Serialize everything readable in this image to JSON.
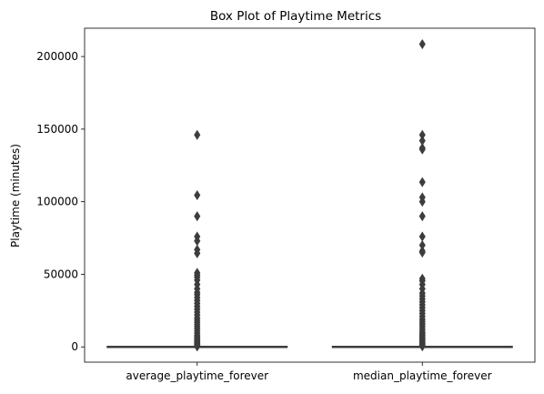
{
  "chart_data": {
    "type": "box",
    "title": "Box Plot of Playtime Metrics",
    "xlabel": "",
    "ylabel": "Playtime (minutes)",
    "ylim": [
      -10500,
      219500
    ],
    "yticks": [
      0,
      50000,
      100000,
      150000,
      200000
    ],
    "yticklabels": [
      "0",
      "50000",
      "100000",
      "150000",
      "200000"
    ],
    "grid": false,
    "legend": "none",
    "box_color": "#3d3d3d",
    "categories": [
      "average_playtime_forever",
      "median_playtime_forever"
    ],
    "boxes": [
      {
        "name": "average_playtime_forever",
        "q1": 0,
        "median": 0,
        "q3": 0,
        "whisker_low": 0,
        "whisker_high": 0,
        "outliers": [
          146000,
          104500,
          90000,
          76000,
          73000,
          67000,
          64500,
          51000,
          49500,
          48000,
          46000,
          43000,
          40000,
          37500,
          36000,
          34000,
          32000,
          30000,
          28000,
          26000,
          24000,
          22000,
          20000,
          18500,
          17000,
          15500,
          14000,
          12500,
          11000,
          9500,
          8000,
          7000,
          6000,
          5000,
          4000,
          3200,
          2500,
          1800,
          1200,
          700,
          300
        ]
      },
      {
        "name": "median_playtime_forever",
        "q1": 0,
        "median": 0,
        "q3": 0,
        "whisker_low": 0,
        "whisker_high": 0,
        "outliers": [
          208500,
          146000,
          142000,
          137000,
          136000,
          113500,
          103000,
          100000,
          90000,
          76000,
          70000,
          66000,
          65000,
          47000,
          45500,
          43000,
          40000,
          37000,
          35000,
          33000,
          31000,
          29000,
          27000,
          25000,
          23000,
          21000,
          19000,
          17500,
          16000,
          14500,
          13000,
          11500,
          10000,
          9000,
          8000,
          7000,
          6000,
          5000,
          4000,
          3000,
          2200,
          1500,
          900,
          400
        ]
      }
    ]
  }
}
